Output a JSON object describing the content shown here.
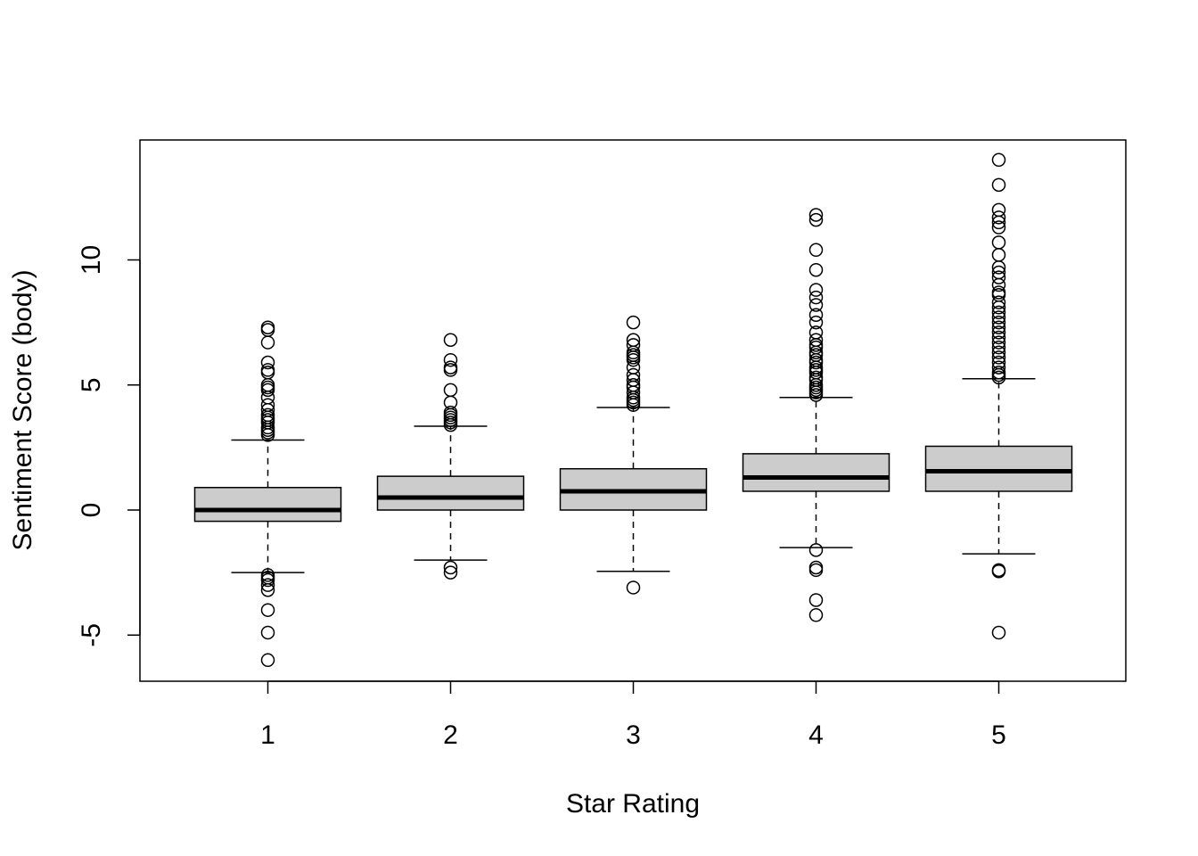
{
  "chart_data": {
    "type": "boxplot",
    "title": "",
    "xlabel": "Star Rating",
    "ylabel": "Sentiment Score (body)",
    "ylim": [
      -6.8,
      14.8
    ],
    "yticks": [
      "-5",
      "0",
      "5",
      "10"
    ],
    "ytick_values": [
      -5,
      0,
      5,
      10
    ],
    "grid": false,
    "box_fill": "#cccccc",
    "categories": [
      "1",
      "2",
      "3",
      "4",
      "5"
    ],
    "boxes": [
      {
        "category": "1",
        "whisker_low": -2.5,
        "q1": -0.45,
        "median": 0.0,
        "q3": 0.9,
        "whisker_high": 2.8,
        "outliers": [
          7.3,
          7.2,
          6.7,
          5.9,
          5.6,
          5.5,
          5.0,
          4.9,
          4.8,
          4.5,
          4.2,
          4.0,
          3.8,
          3.7,
          3.6,
          3.5,
          3.3,
          3.2,
          3.1,
          3.0,
          -2.6,
          -2.7,
          -2.8,
          -3.0,
          -3.2,
          -4.0,
          -4.9,
          -6.0
        ]
      },
      {
        "category": "2",
        "whisker_low": -2.0,
        "q1": 0.0,
        "median": 0.5,
        "q3": 1.35,
        "whisker_high": 3.35,
        "outliers": [
          6.8,
          6.0,
          5.7,
          5.6,
          4.8,
          4.3,
          3.9,
          3.8,
          3.7,
          3.6,
          3.5,
          3.4,
          -2.3,
          -2.5
        ]
      },
      {
        "category": "3",
        "whisker_low": -2.45,
        "q1": 0.0,
        "median": 0.75,
        "q3": 1.65,
        "whisker_high": 4.1,
        "outliers": [
          7.5,
          6.8,
          6.6,
          6.3,
          6.2,
          6.1,
          6.0,
          5.7,
          5.4,
          5.2,
          5.0,
          4.9,
          4.7,
          4.5,
          4.4,
          4.3,
          4.2,
          -3.1
        ]
      },
      {
        "category": "4",
        "whisker_low": -1.5,
        "q1": 0.75,
        "median": 1.3,
        "q3": 2.25,
        "whisker_high": 4.5,
        "outliers": [
          11.8,
          11.6,
          10.4,
          9.6,
          8.8,
          8.5,
          8.2,
          7.8,
          7.5,
          7.1,
          6.8,
          6.6,
          6.5,
          6.3,
          6.2,
          6.0,
          5.9,
          5.7,
          5.6,
          5.5,
          5.3,
          5.2,
          5.0,
          4.9,
          4.8,
          4.7,
          4.6,
          -1.6,
          -2.3,
          -2.4,
          -3.6,
          -4.2
        ]
      },
      {
        "category": "5",
        "whisker_low": -1.75,
        "q1": 0.75,
        "median": 1.55,
        "q3": 2.55,
        "whisker_high": 5.25,
        "outliers": [
          14.0,
          13.0,
          12.0,
          11.7,
          11.5,
          11.3,
          10.7,
          10.2,
          9.7,
          9.5,
          9.3,
          9.0,
          8.7,
          8.6,
          8.3,
          8.1,
          7.9,
          7.7,
          7.5,
          7.3,
          7.1,
          6.9,
          6.7,
          6.5,
          6.3,
          6.1,
          5.9,
          5.7,
          5.5,
          5.4,
          5.3,
          -2.4,
          -2.45,
          -4.9
        ]
      }
    ]
  }
}
